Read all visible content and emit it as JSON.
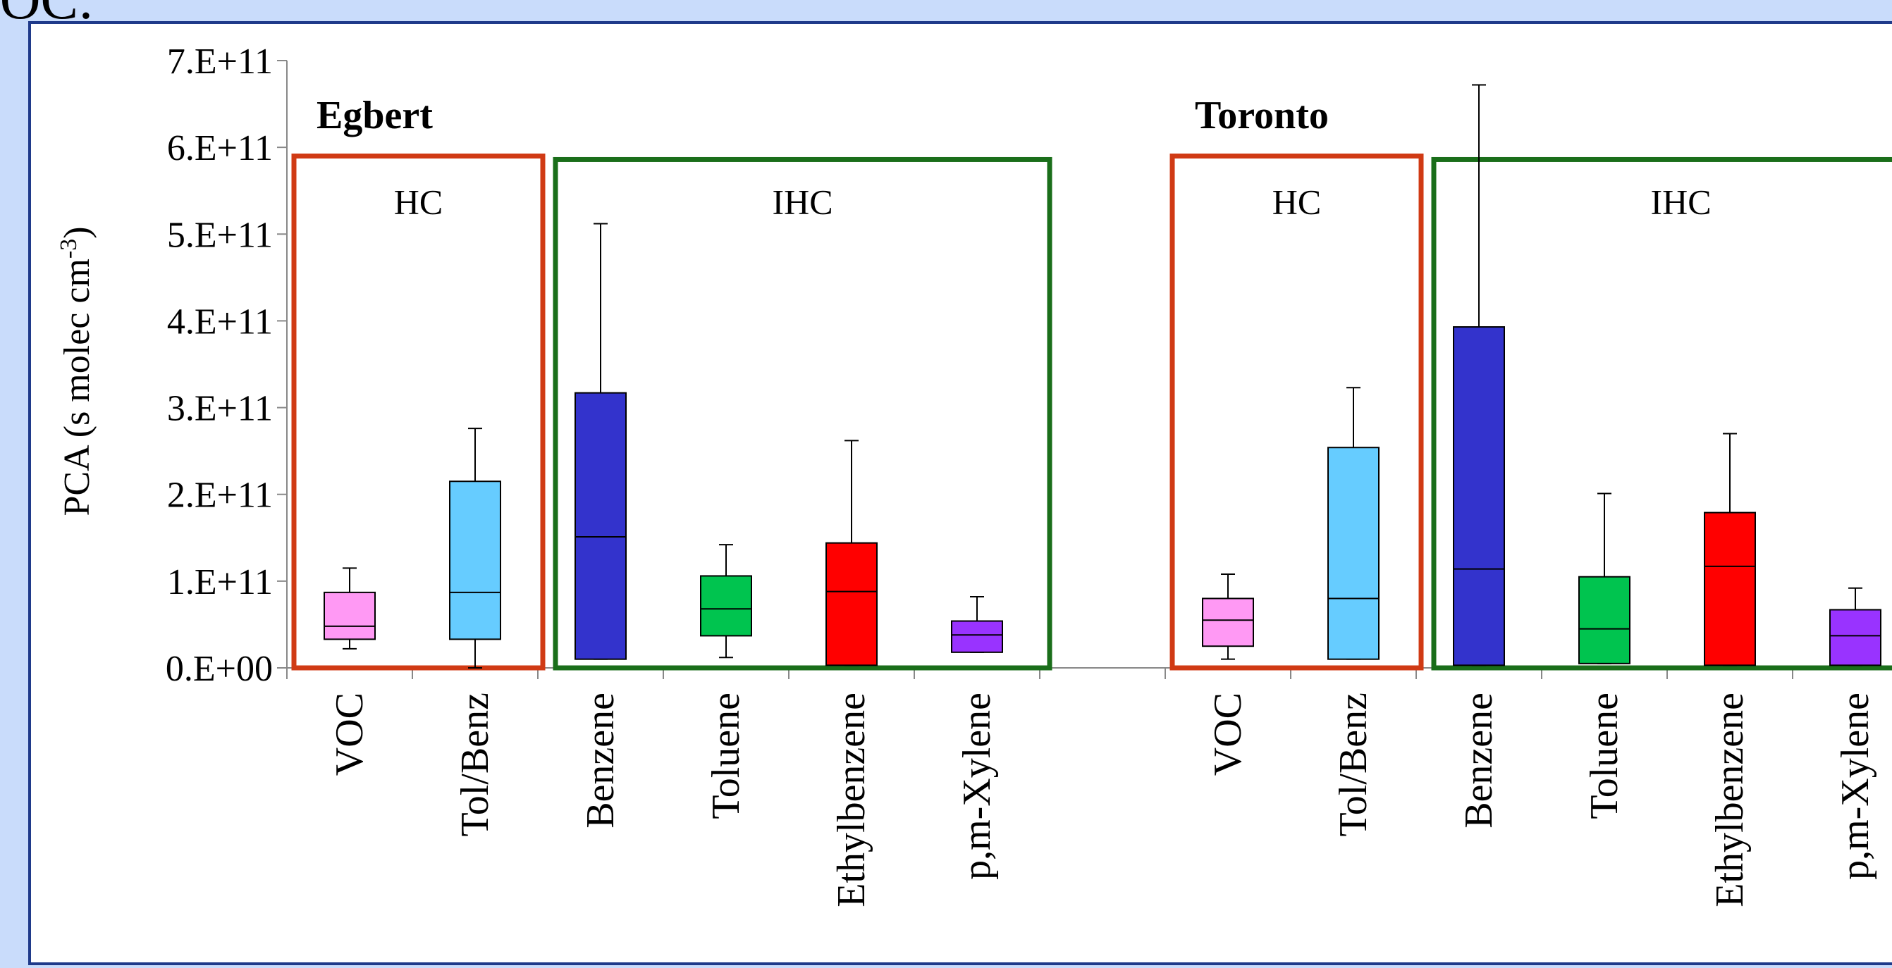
{
  "slide": {
    "title": "VOC:"
  },
  "colors": {
    "hc_box": "#d03a14",
    "ihc_box": "#1a6e1a",
    "VOC": "#ff99f4",
    "Tol/Benz": "#66ccff",
    "Benzene": "#3333cc",
    "Toluene": "#00c44f",
    "Ethylbenzene": "#ff0000",
    "p,m-Xylene": "#9933ff"
  },
  "chart_data": {
    "type": "box",
    "ylabel": "PCA  (s molec cm",
    "ylabel_sup": "-3",
    "ylabel_end": ")",
    "ylim": [
      0,
      700000000000.0
    ],
    "yticks": [
      "0.E+00",
      "1.E+11",
      "2.E+11",
      "3.E+11",
      "4.E+11",
      "5.E+11",
      "6.E+11",
      "7.E+11"
    ],
    "groups": [
      {
        "site": "Egbert",
        "hc_label": "HC",
        "ihc_label": "IHC",
        "boxes": [
          {
            "name": "VOC",
            "whisker_low": 22000000000.0,
            "q1": 33000000000.0,
            "median": 48000000000.0,
            "q3": 87000000000.0,
            "whisker_high": 115000000000.0
          },
          {
            "name": "Tol/Benz",
            "whisker_low": 0.0,
            "q1": 33000000000.0,
            "median": 87000000000.0,
            "q3": 215000000000.0,
            "whisker_high": 276000000000.0
          },
          {
            "name": "Benzene",
            "whisker_low": 10000000000.0,
            "q1": 10000000000.0,
            "median": 151000000000.0,
            "q3": 317000000000.0,
            "whisker_high": 512000000000.0
          },
          {
            "name": "Toluene",
            "whisker_low": 12000000000.0,
            "q1": 37000000000.0,
            "median": 68000000000.0,
            "q3": 106000000000.0,
            "whisker_high": 142000000000.0
          },
          {
            "name": "Ethylbenzene",
            "whisker_low": 3000000000.0,
            "q1": 3000000000.0,
            "median": 88000000000.0,
            "q3": 144000000000.0,
            "whisker_high": 262000000000.0
          },
          {
            "name": "p,m-Xylene",
            "whisker_low": 18000000000.0,
            "q1": 18000000000.0,
            "median": 38000000000.0,
            "q3": 54000000000.0,
            "whisker_high": 82000000000.0
          }
        ]
      },
      {
        "site": "Toronto",
        "hc_label": "HC",
        "ihc_label": "IHC",
        "boxes": [
          {
            "name": "VOC",
            "whisker_low": 10000000000.0,
            "q1": 25000000000.0,
            "median": 55000000000.0,
            "q3": 80000000000.0,
            "whisker_high": 108000000000.0
          },
          {
            "name": "Tol/Benz",
            "whisker_low": 10000000000.0,
            "q1": 10000000000.0,
            "median": 80000000000.0,
            "q3": 254000000000.0,
            "whisker_high": 323000000000.0
          },
          {
            "name": "Benzene",
            "whisker_low": 3000000000.0,
            "q1": 3000000000.0,
            "median": 114000000000.0,
            "q3": 393000000000.0,
            "whisker_high": 672000000000.0
          },
          {
            "name": "Toluene",
            "whisker_low": 5000000000.0,
            "q1": 5000000000.0,
            "median": 45000000000.0,
            "q3": 105000000000.0,
            "whisker_high": 201000000000.0
          },
          {
            "name": "Ethylbenzene",
            "whisker_low": 3000000000.0,
            "q1": 3000000000.0,
            "median": 117000000000.0,
            "q3": 179000000000.0,
            "whisker_high": 270000000000.0
          },
          {
            "name": "p,m-Xylene",
            "whisker_low": 3000000000.0,
            "q1": 3000000000.0,
            "median": 37000000000.0,
            "q3": 67000000000.0,
            "whisker_high": 92000000000.0
          }
        ]
      }
    ]
  }
}
